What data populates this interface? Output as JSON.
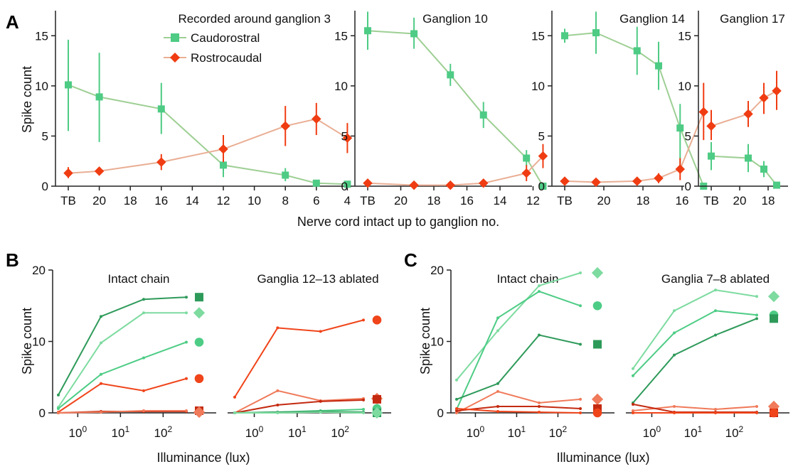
{
  "colors": {
    "caudo": "#4ecb84",
    "caudo_line": "#9ecf94",
    "rostro": "#f03c12",
    "rostro_line": "#e9ae94",
    "greens": [
      "#2e9a5a",
      "#7ddba0",
      "#4dcc85"
    ],
    "reds": [
      "#f0441a",
      "#f07a5a",
      "#c42a10"
    ]
  },
  "panel_letters": [
    "A",
    "B",
    "C"
  ],
  "legend": {
    "caudo": "Caudorostral",
    "rostro": "Rostrocaudal"
  },
  "labels": {
    "spike_count": "Spike count",
    "nerve_cord": "Nerve cord intact up to ganglion no.",
    "illuminance": "Illuminance (lux)"
  },
  "chart_data": [
    {
      "id": "A1",
      "type": "line",
      "title": "Recorded around ganglion 3",
      "ylabel": "Spike count",
      "ylim": [
        0,
        17.5
      ],
      "yticks": [
        0,
        5,
        10,
        15
      ],
      "categories": [
        "TB",
        "20",
        "18",
        "16",
        "14",
        "12",
        "10",
        "8",
        "6",
        "4"
      ],
      "series": [
        {
          "name": "Caudorostral",
          "x": [
            0,
            1,
            3,
            5,
            7,
            8,
            9
          ],
          "y": [
            10.1,
            8.9,
            7.7,
            2.1,
            1.1,
            0.3,
            0.2
          ],
          "lo": [
            5.5,
            4.4,
            5.2,
            0.9,
            0.5,
            0.1,
            0.1
          ],
          "hi": [
            14.6,
            13.3,
            10.3,
            3.2,
            1.8,
            0.5,
            0.4
          ]
        },
        {
          "name": "Rostrocaudal",
          "x": [
            0,
            1,
            3,
            5,
            7,
            8,
            9
          ],
          "y": [
            1.3,
            1.5,
            2.4,
            3.7,
            6.0,
            6.7,
            4.8
          ],
          "lo": [
            0.8,
            1.3,
            1.6,
            2.4,
            4.0,
            5.1,
            3.3
          ],
          "hi": [
            1.9,
            1.7,
            3.2,
            5.1,
            8.0,
            8.3,
            6.3
          ]
        }
      ]
    },
    {
      "id": "A2",
      "type": "line",
      "title": "Ganglion 10",
      "ylim": [
        0,
        17.5
      ],
      "yticks": [
        0,
        5,
        10,
        15
      ],
      "categories": [
        "TB",
        "20",
        "18",
        "16",
        "14",
        "12"
      ],
      "series": [
        {
          "name": "Caudorostral",
          "x": [
            0,
            1.4,
            2.5,
            3.5,
            4.8,
            5.3
          ],
          "y": [
            15.5,
            15.2,
            11.1,
            7.1,
            2.8,
            0.0
          ],
          "lo": [
            13.6,
            13.7,
            10.0,
            5.8,
            2.0,
            0.0
          ],
          "hi": [
            17.4,
            16.8,
            12.2,
            8.4,
            3.6,
            0.1
          ]
        },
        {
          "name": "Rostrocaudal",
          "x": [
            0,
            1.4,
            2.5,
            3.5,
            4.8,
            5.3
          ],
          "y": [
            0.3,
            0.1,
            0.1,
            0.3,
            1.3,
            3.0
          ],
          "lo": [
            0.1,
            0.0,
            0.0,
            0.1,
            0.5,
            1.8
          ],
          "hi": [
            0.5,
            0.2,
            0.2,
            0.5,
            2.1,
            4.2
          ]
        }
      ]
    },
    {
      "id": "A3",
      "type": "line",
      "title": "Ganglion 14",
      "ylim": [
        0,
        17.5
      ],
      "yticks": [
        0,
        5,
        10,
        15
      ],
      "categories": [
        "TB",
        "20",
        "18",
        "16"
      ],
      "series": [
        {
          "name": "Caudorostral",
          "x": [
            0,
            0.8,
            1.85,
            2.4,
            2.95,
            3.55
          ],
          "y": [
            15.0,
            15.3,
            13.5,
            12.0,
            5.8,
            0.0
          ],
          "lo": [
            14.3,
            13.2,
            11.1,
            9.6,
            1.8,
            0.0
          ],
          "hi": [
            15.7,
            17.4,
            15.9,
            14.4,
            8.2,
            0.1
          ]
        },
        {
          "name": "Rostrocaudal",
          "x": [
            0,
            0.8,
            1.85,
            2.4,
            2.95,
            3.55
          ],
          "y": [
            0.5,
            0.4,
            0.5,
            0.8,
            1.7,
            7.4
          ],
          "lo": [
            0.3,
            0.2,
            0.3,
            0.3,
            0.6,
            4.6
          ],
          "hi": [
            0.7,
            0.6,
            0.7,
            1.3,
            2.8,
            10.3
          ]
        }
      ]
    },
    {
      "id": "A4",
      "type": "line",
      "title": "Ganglion 17",
      "ylim": [
        0,
        17.5
      ],
      "yticks": [
        0,
        5,
        10,
        15
      ],
      "categories": [
        "TB",
        "20",
        "18"
      ],
      "series": [
        {
          "name": "Caudorostral",
          "x": [
            0,
            1.3,
            1.85,
            2.3
          ],
          "y": [
            3.0,
            2.8,
            1.7,
            0.1
          ],
          "lo": [
            1.6,
            1.4,
            0.9,
            0.0
          ],
          "hi": [
            4.4,
            4.2,
            2.5,
            0.2
          ]
        },
        {
          "name": "Rostrocaudal",
          "x": [
            0,
            1.3,
            1.85,
            2.3
          ],
          "y": [
            6.0,
            7.2,
            8.8,
            9.5
          ],
          "lo": [
            4.6,
            5.9,
            7.2,
            7.6
          ],
          "hi": [
            7.6,
            8.5,
            10.3,
            11.5
          ]
        }
      ]
    },
    {
      "id": "B1",
      "type": "line",
      "title": "Intact chain",
      "ylabel": "Spike count",
      "xlabel": "Illuminance (lux)",
      "xscale": "log",
      "ylim": [
        0,
        20
      ],
      "yticks": [
        0,
        10,
        20
      ],
      "series": [
        {
          "x": [
            0.35,
            3.5,
            35,
            350
          ],
          "y": [
            2.5,
            13.5,
            15.9,
            16.2
          ],
          "color": 0,
          "group": "g",
          "marker": "square",
          "my": 16.2
        },
        {
          "x": [
            0.35,
            3.5,
            35,
            350
          ],
          "y": [
            0.8,
            9.8,
            14.0,
            14.0
          ],
          "color": 1,
          "group": "g",
          "marker": "diamond",
          "my": 14.0
        },
        {
          "x": [
            0.35,
            3.5,
            35,
            350
          ],
          "y": [
            0.6,
            5.4,
            7.7,
            9.9
          ],
          "color": 2,
          "group": "g",
          "marker": "circle",
          "my": 9.9
        },
        {
          "x": [
            0.35,
            3.5,
            35,
            350
          ],
          "y": [
            0.1,
            4.1,
            3.1,
            4.8
          ],
          "color": 0,
          "group": "r",
          "marker": "circle",
          "my": 4.8
        },
        {
          "x": [
            0.35,
            3.5,
            35,
            350
          ],
          "y": [
            0.0,
            0.2,
            0.2,
            0.2
          ],
          "color": 2,
          "group": "r",
          "marker": "square",
          "my": 0.3
        },
        {
          "x": [
            0.35,
            3.5,
            35,
            350
          ],
          "y": [
            0.0,
            0.1,
            0.3,
            0.3
          ],
          "color": 1,
          "group": "r",
          "marker": "diamond",
          "my": 0.1
        }
      ]
    },
    {
      "id": "B2",
      "type": "line",
      "title": "Ganglia 12–13 ablated",
      "xscale": "log",
      "ylim": [
        0,
        20
      ],
      "series": [
        {
          "x": [
            0.35,
            3.5,
            35,
            350
          ],
          "y": [
            2.2,
            11.9,
            11.4,
            13.0
          ],
          "color": 0,
          "group": "r",
          "marker": "circle",
          "my": 13.0
        },
        {
          "x": [
            0.35,
            3.5,
            35,
            350
          ],
          "y": [
            0.0,
            3.1,
            1.7,
            2.0
          ],
          "color": 1,
          "group": "r",
          "marker": "diamond",
          "my": 2.0
        },
        {
          "x": [
            0.35,
            3.5,
            35,
            350
          ],
          "y": [
            0.0,
            1.1,
            1.6,
            1.8
          ],
          "color": 2,
          "group": "r",
          "marker": "square",
          "my": 1.9
        },
        {
          "x": [
            0.35,
            3.5,
            35,
            350
          ],
          "y": [
            0.0,
            0.1,
            0.3,
            0.5
          ],
          "color": 2,
          "group": "g",
          "marker": "circle",
          "my": 0.6
        },
        {
          "x": [
            0.35,
            3.5,
            35,
            350
          ],
          "y": [
            0.0,
            0.1,
            0.2,
            0.1
          ],
          "color": 0,
          "group": "g",
          "marker": "square",
          "my": 0.0
        },
        {
          "x": [
            0.35,
            3.5,
            35,
            350
          ],
          "y": [
            0.0,
            0.0,
            0.1,
            0.0
          ],
          "color": 1,
          "group": "g",
          "marker": "diamond",
          "my": 0.0
        }
      ]
    },
    {
      "id": "C1",
      "type": "line",
      "title": "Intact chain",
      "ylabel": "Spike count",
      "xlabel": "Illuminance (lux)",
      "xscale": "log",
      "ylim": [
        0,
        20
      ],
      "yticks": [
        0,
        10,
        20
      ],
      "series": [
        {
          "x": [
            0.35,
            3.5,
            35,
            350
          ],
          "y": [
            4.6,
            11.5,
            17.8,
            19.6
          ],
          "color": 1,
          "group": "g",
          "marker": "diamond",
          "my": 19.6
        },
        {
          "x": [
            0.35,
            3.5,
            35,
            350
          ],
          "y": [
            0.5,
            13.3,
            17.0,
            15.0
          ],
          "color": 2,
          "group": "g",
          "marker": "circle",
          "my": 15.0
        },
        {
          "x": [
            0.35,
            3.5,
            35,
            350
          ],
          "y": [
            1.9,
            4.1,
            10.9,
            9.6
          ],
          "color": 0,
          "group": "g",
          "marker": "square",
          "my": 9.6
        },
        {
          "x": [
            0.35,
            3.5,
            35,
            350
          ],
          "y": [
            0.0,
            3.0,
            1.4,
            1.9
          ],
          "color": 1,
          "group": "r",
          "marker": "diamond",
          "my": 1.9
        },
        {
          "x": [
            0.35,
            3.5,
            35,
            350
          ],
          "y": [
            0.3,
            0.9,
            0.9,
            0.6
          ],
          "color": 2,
          "group": "r",
          "marker": "square",
          "my": 0.6
        },
        {
          "x": [
            0.35,
            3.5,
            35,
            350
          ],
          "y": [
            0.6,
            0.2,
            0.1,
            0.0
          ],
          "color": 0,
          "group": "r",
          "marker": "circle",
          "my": 0.0
        }
      ]
    },
    {
      "id": "C2",
      "type": "line",
      "title": "Ganglia 7–8 ablated",
      "xscale": "log",
      "ylim": [
        0,
        20
      ],
      "series": [
        {
          "x": [
            0.35,
            3.5,
            35,
            350
          ],
          "y": [
            6.2,
            14.3,
            17.2,
            16.3
          ],
          "color": 1,
          "group": "g",
          "marker": "diamond",
          "my": 16.3
        },
        {
          "x": [
            0.35,
            3.5,
            35,
            350
          ],
          "y": [
            5.2,
            11.2,
            14.3,
            13.7
          ],
          "color": 2,
          "group": "g",
          "marker": "circle",
          "my": 13.7
        },
        {
          "x": [
            0.35,
            3.5,
            35,
            350
          ],
          "y": [
            1.4,
            8.1,
            10.9,
            13.2
          ],
          "color": 0,
          "group": "g",
          "marker": "square",
          "my": 13.2
        },
        {
          "x": [
            0.35,
            3.5,
            35,
            350
          ],
          "y": [
            0.3,
            0.9,
            0.5,
            0.9
          ],
          "color": 1,
          "group": "r",
          "marker": "diamond",
          "my": 0.9
        },
        {
          "x": [
            0.35,
            3.5,
            35,
            350
          ],
          "y": [
            1.2,
            0.1,
            0.1,
            0.1
          ],
          "color": 2,
          "group": "r",
          "marker": "square",
          "my": 0.0
        },
        {
          "x": [
            0.35,
            3.5,
            35,
            350
          ],
          "y": [
            0.0,
            0.0,
            0.0,
            0.0
          ],
          "color": 0,
          "group": "r",
          "marker": "circle",
          "my": 0.0
        }
      ]
    }
  ]
}
